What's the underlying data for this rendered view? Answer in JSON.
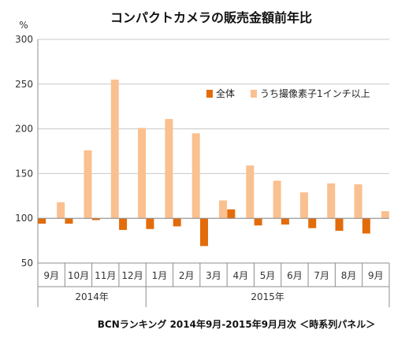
{
  "chart_data": {
    "type": "bar",
    "title": "コンパクトカメラの販売金額前年比",
    "ylabel": "%",
    "ylim": [
      50,
      300
    ],
    "yticks": [
      50,
      100,
      150,
      200,
      250,
      300
    ],
    "baseline": 100,
    "categories": [
      "9月",
      "10月",
      "11月",
      "12月",
      "1月",
      "2月",
      "3月",
      "4月",
      "5月",
      "6月",
      "7月",
      "8月",
      "9月"
    ],
    "year_groups": [
      {
        "label": "2014年",
        "start": 0,
        "end": 3
      },
      {
        "label": "2015年",
        "start": 4,
        "end": 12
      }
    ],
    "series": [
      {
        "name": "全体",
        "color": "#E36C0A",
        "values": [
          94,
          94,
          98,
          87,
          88,
          91,
          69,
          110,
          92,
          93,
          89,
          86,
          83
        ]
      },
      {
        "name": "うち撮像素子1インチ以上",
        "color": "#FAC090",
        "values": [
          118,
          176,
          255,
          201,
          211,
          195,
          120,
          159,
          142,
          129,
          139,
          138,
          108
        ]
      }
    ],
    "grid": true,
    "legend": "upper-right",
    "source_note": "BCNランキング 2014年9月-2015年9月月次 ＜時系列パネル＞"
  }
}
